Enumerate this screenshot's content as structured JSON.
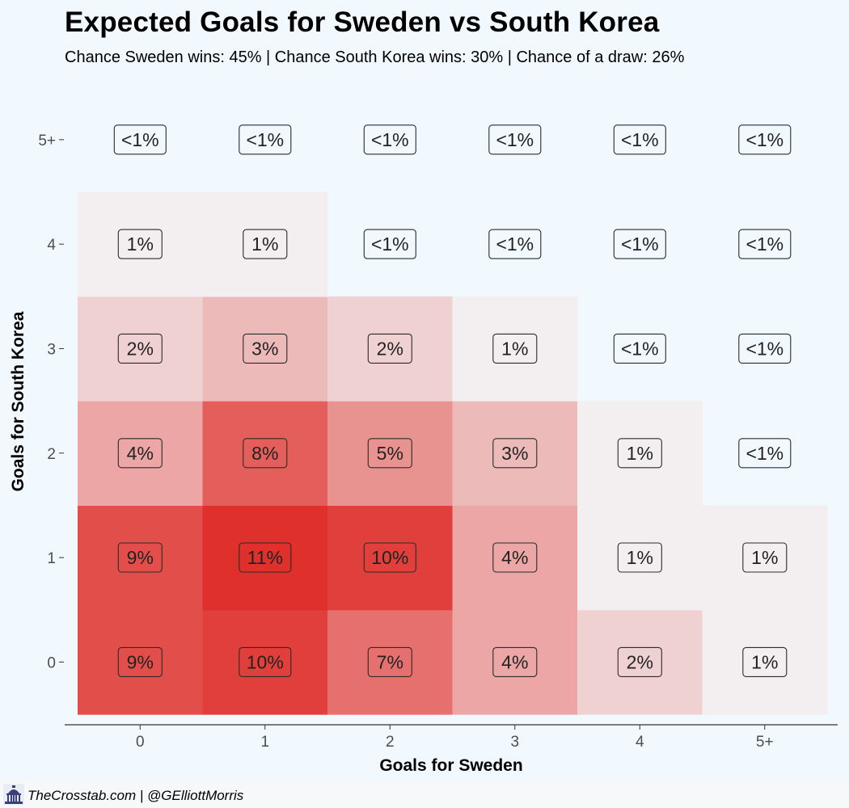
{
  "title": "Expected Goals for Sweden vs South Korea",
  "subtitle": "Chance Sweden wins: 45% | Chance South Korea wins: 30% | Chance of a draw: 26%",
  "footer": {
    "text": "TheCrosstab.com | @GElliottMorris",
    "logo_icon": "capitol-building-icon"
  },
  "colors": {
    "background": "#f1f9ff",
    "low": "#f3eff0",
    "high": "#df302b"
  },
  "chart_data": {
    "type": "heatmap",
    "title": "Expected Goals for Sweden vs South Korea",
    "xlabel": "Goals for Sweden",
    "ylabel": "Goals for South Korea",
    "x_categories": [
      "0",
      "1",
      "2",
      "3",
      "4",
      "5+"
    ],
    "y_categories": [
      "0",
      "1",
      "2",
      "3",
      "4",
      "5+"
    ],
    "labels": [
      [
        "9%",
        "10%",
        "7%",
        "4%",
        "2%",
        "1%"
      ],
      [
        "9%",
        "11%",
        "10%",
        "4%",
        "1%",
        "1%"
      ],
      [
        "4%",
        "8%",
        "5%",
        "3%",
        "1%",
        "<1%"
      ],
      [
        "2%",
        "3%",
        "2%",
        "1%",
        "<1%",
        "<1%"
      ],
      [
        "1%",
        "1%",
        "<1%",
        "<1%",
        "<1%",
        "<1%"
      ],
      [
        "<1%",
        "<1%",
        "<1%",
        "<1%",
        "<1%",
        "<1%"
      ]
    ],
    "values": [
      [
        9,
        10,
        7,
        4,
        2,
        1
      ],
      [
        9,
        11,
        10,
        4,
        1,
        1
      ],
      [
        4,
        8,
        5,
        3,
        1,
        0.5
      ],
      [
        2,
        3,
        2,
        1,
        0.5,
        0.5
      ],
      [
        1,
        1,
        0.5,
        0.5,
        0.5,
        0.5
      ],
      [
        0.5,
        0.5,
        0.5,
        0.5,
        0.5,
        0.5
      ]
    ],
    "fill_threshold": 1,
    "grid": false
  }
}
